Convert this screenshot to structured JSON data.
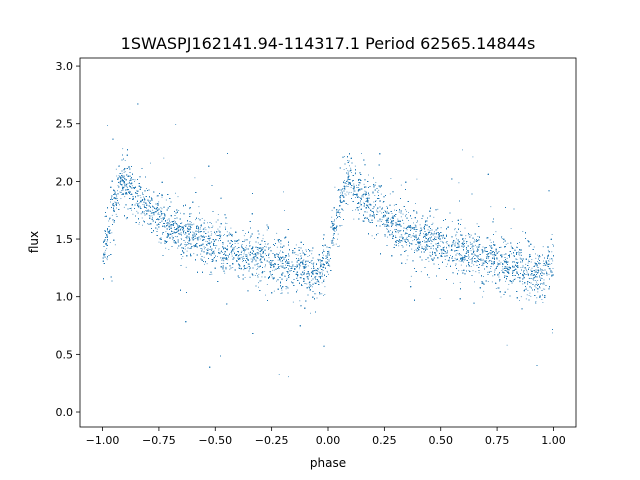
{
  "chart_data": {
    "type": "scatter",
    "title": "1SWASPJ162141.94-114317.1 Period 62565.14844s",
    "xlabel": "phase",
    "ylabel": "flux",
    "xlim": [
      -1.1,
      1.1
    ],
    "ylim": [
      -0.13,
      3.07
    ],
    "xticks": [
      -1.0,
      -0.75,
      -0.5,
      -0.25,
      0.0,
      0.25,
      0.5,
      0.75,
      1.0
    ],
    "xtick_labels": [
      "−1.00",
      "−0.75",
      "−0.50",
      "−0.25",
      "0.00",
      "0.25",
      "0.50",
      "0.75",
      "1.00"
    ],
    "yticks": [
      0.0,
      0.5,
      1.0,
      1.5,
      2.0,
      2.5,
      3.0
    ],
    "ytick_labels": [
      "0.0",
      "0.5",
      "1.0",
      "1.5",
      "2.0",
      "2.5",
      "3.0"
    ],
    "grid": false,
    "marker_color": "#1f77b4",
    "series": [
      {
        "profile_phase": [
          0.0,
          0.05,
          0.08,
          0.1,
          0.15,
          0.2,
          0.3,
          0.4,
          0.5,
          0.6,
          0.7,
          0.8,
          0.9,
          0.95,
          1.0
        ],
        "profile_flux": [
          1.38,
          1.8,
          2.0,
          1.98,
          1.88,
          1.78,
          1.62,
          1.52,
          1.45,
          1.38,
          1.33,
          1.28,
          1.22,
          1.18,
          1.38
        ],
        "scatter_sigma": 0.1,
        "approx_points": 22000
      }
    ]
  }
}
